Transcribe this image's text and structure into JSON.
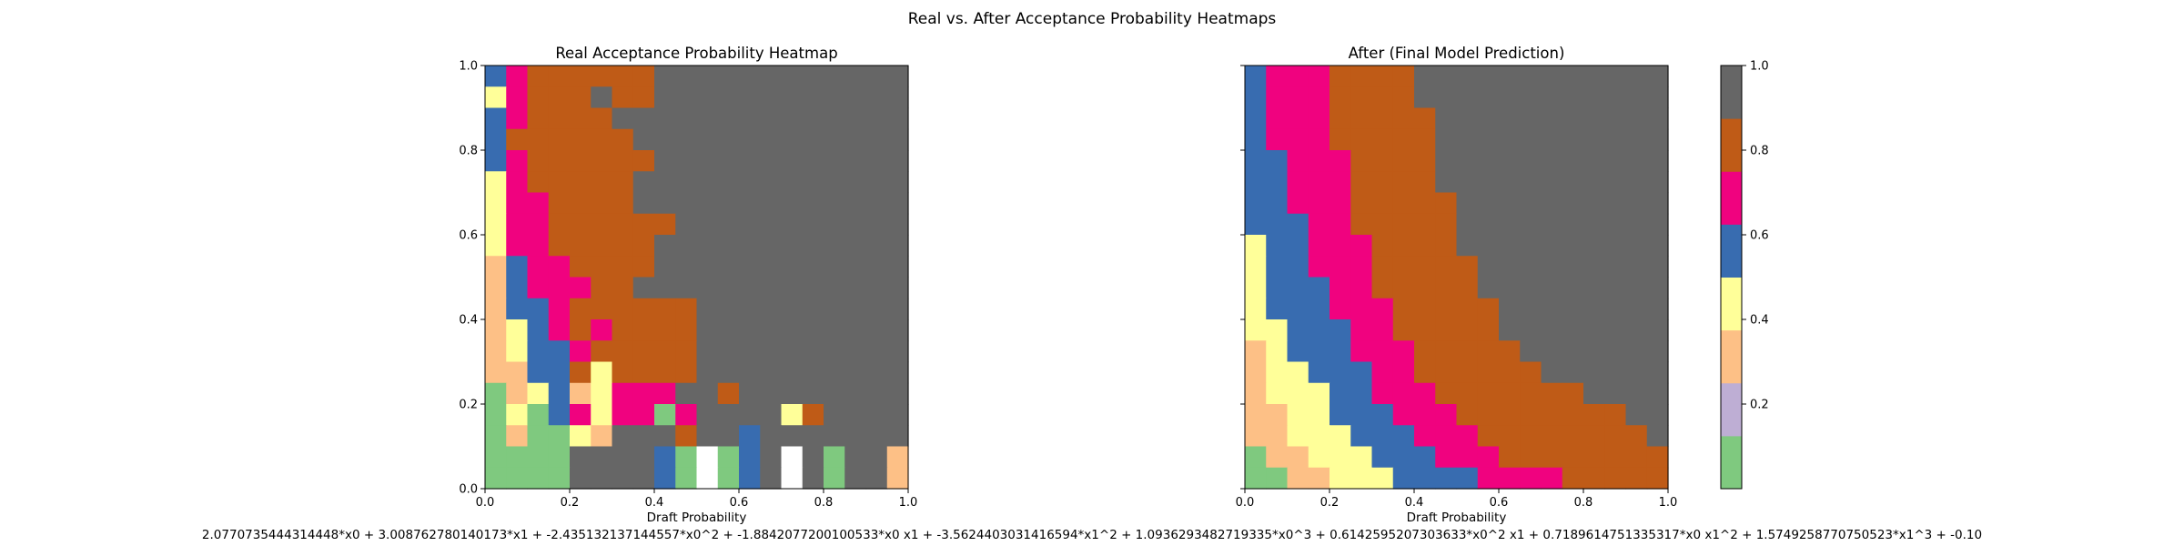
{
  "figure": {
    "suptitle": "Real vs. After Acceptance Probability Heatmaps",
    "formula": "2.0770735444314448*x0 + 3.008762780140173*x1 + -2.435132137144557*x0^2 + -1.8842077200100533*x0 x1 + -3.5624403031416594*x1^2 + 1.0936293482719335*x0^3 + 0.6142595207303633*x0^2 x1 + 0.7189614751335317*x0 x1^2 + 1.5749258770750523*x1^3 + -0.10"
  },
  "chart_data": [
    {
      "type": "heatmap",
      "title": "Real Acceptance Probability Heatmap",
      "xlabel": "Draft Probability",
      "ylabel": "",
      "xlim": [
        0,
        1
      ],
      "ylim": [
        0,
        1
      ],
      "xticks": [
        "0.0",
        "0.2",
        "0.4",
        "0.6",
        "0.8",
        "1.0"
      ],
      "yticks": [
        "0.0",
        "0.2",
        "0.4",
        "0.6",
        "0.8",
        "1.0"
      ],
      "grid": false,
      "n_bins": 20,
      "rows_top_to_bottom": [
        [
          0.5,
          0.68,
          0.82,
          0.82,
          0.82,
          0.82,
          0.82,
          0.82,
          1.0,
          1.0,
          1.0,
          1.0,
          1.0,
          1.0,
          1.0,
          1.0,
          1.0,
          1.0,
          1.0,
          1.0
        ],
        [
          0.45,
          0.68,
          0.82,
          0.82,
          0.82,
          1.0,
          0.82,
          0.82,
          1.0,
          1.0,
          1.0,
          1.0,
          1.0,
          1.0,
          1.0,
          1.0,
          1.0,
          1.0,
          1.0,
          1.0
        ],
        [
          0.55,
          0.68,
          0.82,
          0.82,
          0.82,
          0.82,
          1.0,
          1.0,
          1.0,
          1.0,
          1.0,
          1.0,
          1.0,
          1.0,
          1.0,
          1.0,
          1.0,
          1.0,
          1.0,
          1.0
        ],
        [
          0.55,
          0.82,
          0.82,
          0.82,
          0.82,
          0.82,
          0.82,
          1.0,
          1.0,
          1.0,
          1.0,
          1.0,
          1.0,
          1.0,
          1.0,
          1.0,
          1.0,
          1.0,
          1.0,
          1.0
        ],
        [
          0.55,
          0.68,
          0.82,
          0.82,
          0.82,
          0.82,
          0.82,
          0.82,
          1.0,
          1.0,
          1.0,
          1.0,
          1.0,
          1.0,
          1.0,
          1.0,
          1.0,
          1.0,
          1.0,
          1.0
        ],
        [
          0.45,
          0.68,
          0.82,
          0.82,
          0.82,
          0.82,
          0.82,
          1.0,
          1.0,
          1.0,
          1.0,
          1.0,
          1.0,
          1.0,
          1.0,
          1.0,
          1.0,
          1.0,
          1.0,
          1.0
        ],
        [
          0.45,
          0.68,
          0.68,
          0.82,
          0.82,
          0.82,
          0.82,
          1.0,
          1.0,
          1.0,
          1.0,
          1.0,
          1.0,
          1.0,
          1.0,
          1.0,
          1.0,
          1.0,
          1.0,
          1.0
        ],
        [
          0.45,
          0.68,
          0.68,
          0.82,
          0.82,
          0.82,
          0.82,
          0.82,
          0.82,
          1.0,
          1.0,
          1.0,
          1.0,
          1.0,
          1.0,
          1.0,
          1.0,
          1.0,
          1.0,
          1.0
        ],
        [
          0.45,
          0.68,
          0.68,
          0.82,
          0.82,
          0.82,
          0.82,
          0.82,
          1.0,
          1.0,
          1.0,
          1.0,
          1.0,
          1.0,
          1.0,
          1.0,
          1.0,
          1.0,
          1.0,
          1.0
        ],
        [
          0.35,
          0.55,
          0.68,
          0.68,
          0.82,
          0.82,
          0.82,
          0.82,
          1.0,
          1.0,
          1.0,
          1.0,
          1.0,
          1.0,
          1.0,
          1.0,
          1.0,
          1.0,
          1.0,
          1.0
        ],
        [
          0.35,
          0.55,
          0.68,
          0.68,
          0.68,
          0.82,
          0.82,
          1.0,
          1.0,
          1.0,
          1.0,
          1.0,
          1.0,
          1.0,
          1.0,
          1.0,
          1.0,
          1.0,
          1.0,
          1.0
        ],
        [
          0.35,
          0.55,
          0.55,
          0.68,
          0.82,
          0.82,
          0.82,
          0.82,
          0.82,
          0.82,
          1.0,
          1.0,
          1.0,
          1.0,
          1.0,
          1.0,
          1.0,
          1.0,
          1.0,
          1.0
        ],
        [
          0.25,
          0.45,
          0.55,
          0.68,
          0.82,
          0.68,
          0.82,
          0.82,
          0.82,
          0.82,
          1.0,
          1.0,
          1.0,
          1.0,
          1.0,
          1.0,
          1.0,
          1.0,
          1.0,
          1.0
        ],
        [
          0.25,
          0.45,
          0.55,
          0.55,
          0.68,
          0.82,
          0.82,
          0.82,
          0.82,
          0.82,
          1.0,
          1.0,
          1.0,
          1.0,
          1.0,
          1.0,
          1.0,
          1.0,
          1.0,
          1.0
        ],
        [
          0.25,
          0.35,
          0.55,
          0.55,
          0.82,
          0.45,
          0.82,
          0.82,
          0.82,
          0.82,
          1.0,
          1.0,
          1.0,
          1.0,
          1.0,
          1.0,
          1.0,
          1.0,
          1.0,
          1.0
        ],
        [
          0.1,
          0.25,
          0.45,
          0.55,
          0.35,
          0.45,
          0.68,
          0.68,
          0.68,
          1.0,
          1.0,
          0.82,
          1.0,
          1.0,
          1.0,
          1.0,
          1.0,
          1.0,
          1.0,
          1.0
        ],
        [
          0.1,
          0.45,
          0.1,
          0.55,
          0.68,
          0.45,
          0.68,
          0.68,
          0.1,
          0.68,
          1.0,
          1.0,
          1.0,
          1.0,
          0.45,
          0.82,
          1.0,
          1.0,
          1.0,
          1.0
        ],
        [
          0.1,
          0.25,
          0.1,
          0.1,
          0.45,
          0.35,
          1.0,
          1.0,
          1.0,
          0.82,
          1.0,
          1.0,
          0.55,
          1.0,
          1.0,
          1.0,
          1.0,
          1.0,
          1.0,
          1.0
        ],
        [
          0.1,
          0.1,
          0.1,
          0.1,
          1.0,
          1.0,
          1.0,
          1.0,
          0.55,
          0.1,
          null,
          0.1,
          0.55,
          1.0,
          null,
          1.0,
          0.1,
          1.0,
          1.0,
          0.25
        ],
        [
          0.1,
          0.1,
          0.1,
          0.1,
          1.0,
          1.0,
          1.0,
          1.0,
          0.55,
          0.1,
          null,
          0.1,
          0.55,
          1.0,
          null,
          1.0,
          0.1,
          1.0,
          1.0,
          0.25
        ]
      ]
    },
    {
      "type": "heatmap",
      "title": "After (Final Model Prediction)",
      "xlabel": "Draft Probability",
      "ylabel": "",
      "xlim": [
        0,
        1
      ],
      "ylim": [
        0,
        1
      ],
      "xticks": [
        "0.0",
        "0.2",
        "0.4",
        "0.6",
        "0.8",
        "1.0"
      ],
      "yticks": [],
      "grid": false,
      "n_bins": 20,
      "rows_top_to_bottom": [
        [
          0.55,
          0.68,
          0.68,
          0.68,
          0.82,
          0.82,
          0.82,
          0.82,
          1.0,
          1.0,
          1.0,
          1.0,
          1.0,
          1.0,
          1.0,
          1.0,
          1.0,
          1.0,
          1.0,
          1.0
        ],
        [
          0.55,
          0.68,
          0.68,
          0.68,
          0.82,
          0.82,
          0.82,
          0.82,
          1.0,
          1.0,
          1.0,
          1.0,
          1.0,
          1.0,
          1.0,
          1.0,
          1.0,
          1.0,
          1.0,
          1.0
        ],
        [
          0.55,
          0.68,
          0.68,
          0.68,
          0.82,
          0.82,
          0.82,
          0.82,
          0.82,
          1.0,
          1.0,
          1.0,
          1.0,
          1.0,
          1.0,
          1.0,
          1.0,
          1.0,
          1.0,
          1.0
        ],
        [
          0.55,
          0.68,
          0.68,
          0.68,
          0.82,
          0.82,
          0.82,
          0.82,
          0.82,
          1.0,
          1.0,
          1.0,
          1.0,
          1.0,
          1.0,
          1.0,
          1.0,
          1.0,
          1.0,
          1.0
        ],
        [
          0.55,
          0.55,
          0.68,
          0.68,
          0.68,
          0.82,
          0.82,
          0.82,
          0.82,
          1.0,
          1.0,
          1.0,
          1.0,
          1.0,
          1.0,
          1.0,
          1.0,
          1.0,
          1.0,
          1.0
        ],
        [
          0.55,
          0.55,
          0.68,
          0.68,
          0.68,
          0.82,
          0.82,
          0.82,
          0.82,
          1.0,
          1.0,
          1.0,
          1.0,
          1.0,
          1.0,
          1.0,
          1.0,
          1.0,
          1.0,
          1.0
        ],
        [
          0.55,
          0.55,
          0.68,
          0.68,
          0.68,
          0.82,
          0.82,
          0.82,
          0.82,
          0.82,
          1.0,
          1.0,
          1.0,
          1.0,
          1.0,
          1.0,
          1.0,
          1.0,
          1.0,
          1.0
        ],
        [
          0.55,
          0.55,
          0.55,
          0.68,
          0.68,
          0.82,
          0.82,
          0.82,
          0.82,
          0.82,
          1.0,
          1.0,
          1.0,
          1.0,
          1.0,
          1.0,
          1.0,
          1.0,
          1.0,
          1.0
        ],
        [
          0.45,
          0.55,
          0.55,
          0.68,
          0.68,
          0.68,
          0.82,
          0.82,
          0.82,
          0.82,
          1.0,
          1.0,
          1.0,
          1.0,
          1.0,
          1.0,
          1.0,
          1.0,
          1.0,
          1.0
        ],
        [
          0.45,
          0.55,
          0.55,
          0.68,
          0.68,
          0.68,
          0.82,
          0.82,
          0.82,
          0.82,
          0.82,
          1.0,
          1.0,
          1.0,
          1.0,
          1.0,
          1.0,
          1.0,
          1.0,
          1.0
        ],
        [
          0.45,
          0.55,
          0.55,
          0.55,
          0.68,
          0.68,
          0.82,
          0.82,
          0.82,
          0.82,
          0.82,
          1.0,
          1.0,
          1.0,
          1.0,
          1.0,
          1.0,
          1.0,
          1.0,
          1.0
        ],
        [
          0.45,
          0.55,
          0.55,
          0.55,
          0.68,
          0.68,
          0.68,
          0.82,
          0.82,
          0.82,
          0.82,
          0.82,
          1.0,
          1.0,
          1.0,
          1.0,
          1.0,
          1.0,
          1.0,
          1.0
        ],
        [
          0.45,
          0.45,
          0.55,
          0.55,
          0.55,
          0.68,
          0.68,
          0.82,
          0.82,
          0.82,
          0.82,
          0.82,
          1.0,
          1.0,
          1.0,
          1.0,
          1.0,
          1.0,
          1.0,
          1.0
        ],
        [
          0.35,
          0.45,
          0.55,
          0.55,
          0.55,
          0.68,
          0.68,
          0.68,
          0.82,
          0.82,
          0.82,
          0.82,
          0.82,
          1.0,
          1.0,
          1.0,
          1.0,
          1.0,
          1.0,
          1.0
        ],
        [
          0.35,
          0.45,
          0.45,
          0.55,
          0.55,
          0.55,
          0.68,
          0.68,
          0.82,
          0.82,
          0.82,
          0.82,
          0.82,
          0.82,
          1.0,
          1.0,
          1.0,
          1.0,
          1.0,
          1.0
        ],
        [
          0.35,
          0.45,
          0.45,
          0.45,
          0.55,
          0.55,
          0.68,
          0.68,
          0.68,
          0.82,
          0.82,
          0.82,
          0.82,
          0.82,
          0.82,
          0.82,
          1.0,
          1.0,
          1.0,
          1.0
        ],
        [
          0.25,
          0.35,
          0.45,
          0.45,
          0.55,
          0.55,
          0.55,
          0.68,
          0.68,
          0.68,
          0.82,
          0.82,
          0.82,
          0.82,
          0.82,
          0.82,
          0.82,
          0.82,
          1.0,
          1.0
        ],
        [
          0.25,
          0.35,
          0.45,
          0.45,
          0.45,
          0.55,
          0.55,
          0.55,
          0.68,
          0.68,
          0.68,
          0.82,
          0.82,
          0.82,
          0.82,
          0.82,
          0.82,
          0.82,
          0.82,
          1.0
        ],
        [
          0.1,
          0.25,
          0.35,
          0.45,
          0.45,
          0.45,
          0.55,
          0.55,
          0.55,
          0.68,
          0.68,
          0.68,
          0.82,
          0.82,
          0.82,
          0.82,
          0.82,
          0.82,
          0.82,
          0.82
        ],
        [
          0.1,
          0.1,
          0.25,
          0.35,
          0.45,
          0.45,
          0.45,
          0.55,
          0.55,
          0.55,
          0.55,
          0.68,
          0.68,
          0.68,
          0.68,
          0.82,
          0.82,
          0.82,
          0.82,
          0.82
        ]
      ]
    }
  ],
  "colorbar": {
    "ticks": [
      "0.2",
      "0.4",
      "0.6",
      "0.8",
      "1.0"
    ],
    "range": [
      0,
      1
    ],
    "colors": [
      "#7fc97f",
      "#beaed4",
      "#fdc086",
      "#ffff99",
      "#386cb0",
      "#f0027f",
      "#bf5b17",
      "#666666"
    ],
    "bounds": [
      0.0,
      0.125,
      0.25,
      0.375,
      0.5,
      0.625,
      0.75,
      0.875,
      1.0
    ],
    "empty_color": "#ffffff"
  }
}
